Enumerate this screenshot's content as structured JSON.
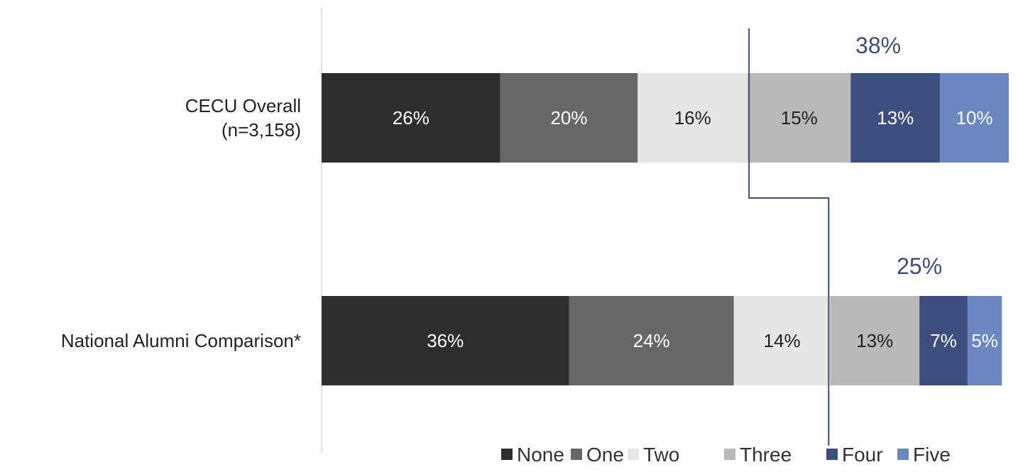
{
  "chart_data": {
    "type": "bar",
    "orientation": "horizontal",
    "stacked": true,
    "title": "",
    "xlabel": "",
    "ylabel": "",
    "xlim": [
      0,
      100
    ],
    "grid": false,
    "legend_position": "bottom-right",
    "categories": [
      {
        "label_lines": [
          "CECU Overall",
          "(n=3,158)"
        ]
      },
      {
        "label_lines": [
          "National Alumni Comparison*"
        ]
      }
    ],
    "series": [
      {
        "name": "None",
        "color": "#2e2e2e",
        "text_color": "#ffffff",
        "values": [
          26,
          36
        ],
        "labels": [
          "26%",
          "36%"
        ]
      },
      {
        "name": "One",
        "color": "#676767",
        "text_color": "#ffffff",
        "values": [
          20,
          24
        ],
        "labels": [
          "20%",
          "24%"
        ]
      },
      {
        "name": "Two",
        "color": "#e6e6e6",
        "text_color": "#222222",
        "values": [
          16,
          14
        ],
        "labels": [
          "16%",
          "14%"
        ]
      },
      {
        "name": "Three",
        "color": "#b9b9b9",
        "text_color": "#222222",
        "values": [
          15,
          13
        ],
        "labels": [
          "15%",
          "13%"
        ]
      },
      {
        "name": "Four",
        "color": "#3b4e7e",
        "text_color": "#ffffff",
        "values": [
          13,
          7
        ],
        "labels": [
          "13%",
          "7%"
        ]
      },
      {
        "name": "Five",
        "color": "#6b86c0",
        "text_color": "#ffffff",
        "values": [
          10,
          5
        ],
        "labels": [
          "10%",
          "5%"
        ]
      }
    ],
    "annotations": [
      {
        "text": "38%",
        "category_index": 0,
        "covers_series": [
          "Three",
          "Four",
          "Five"
        ]
      },
      {
        "text": "25%",
        "category_index": 1,
        "covers_series": [
          "Three",
          "Four",
          "Five"
        ]
      }
    ],
    "connector_color": "#3b4e7e",
    "axis_color": "#d9d9d9"
  }
}
